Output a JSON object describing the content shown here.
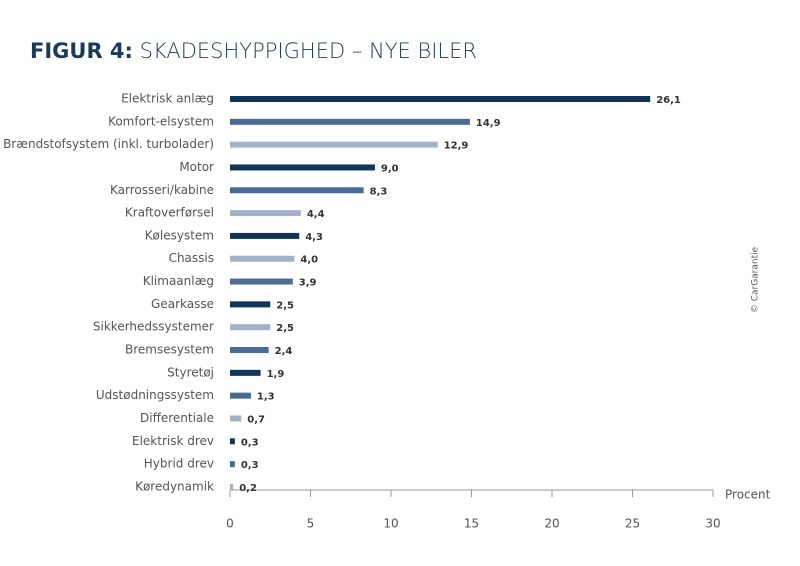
{
  "chart_data": {
    "type": "hbar",
    "title_prefix": "FIGUR 4:",
    "title": "SKADESHYPPIGHED – NYE BILER",
    "x_label": "Procent",
    "source": "© CarGarantie",
    "categories": [
      "Elektrisk anlæg",
      "Komfort-elsystem",
      "Brændstofsystem (inkl. turbolader)",
      "Motor",
      "Karrosseri/kabine",
      "Kraftoverførsel",
      "Kølesystem",
      "Chassis",
      "Klimaanlæg",
      "Gearkasse",
      "Sikkerhedssystemer",
      "Bremsesystem",
      "Styretøj",
      "Udstødningssystem",
      "Differentiale",
      "Elektrisk drev",
      "Hybrid drev",
      "Køredynamik"
    ],
    "values": [
      26.1,
      14.9,
      12.9,
      9.0,
      8.3,
      4.4,
      4.3,
      4.0,
      3.9,
      2.5,
      2.5,
      2.4,
      1.9,
      1.3,
      0.7,
      0.3,
      0.3,
      0.2
    ],
    "value_labels": [
      "26,1",
      "14,9",
      "12,9",
      "9,0",
      "8,3",
      "4,4",
      "4,3",
      "4,0",
      "3,9",
      "2,5",
      "2,5",
      "2,4",
      "1,9",
      "1,3",
      "0,7",
      "0,3",
      "0,3",
      "0,2"
    ],
    "colors": [
      "#0f3559",
      "#4a6c94",
      "#a2b2cb",
      "#0f3559",
      "#4a6c94",
      "#a2b2cb",
      "#0f3559",
      "#a2b2cb",
      "#4a6c94",
      "#0f3559",
      "#a2b2cb",
      "#4a6c94",
      "#0f3559",
      "#4a6c94",
      "#a2b2cb",
      "#0f3559",
      "#4a6c94",
      "#a2b2cb"
    ],
    "xlim": [
      0,
      30
    ],
    "xticks": [
      0,
      5,
      10,
      15,
      20,
      25,
      30
    ]
  }
}
